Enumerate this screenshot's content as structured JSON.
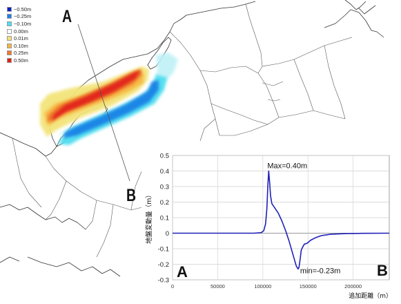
{
  "legend": {
    "items": [
      {
        "label": "−0.50m",
        "color": "#0a1ec8"
      },
      {
        "label": "−0.25m",
        "color": "#1e7ee6"
      },
      {
        "label": "−0.10m",
        "color": "#46e2ee"
      },
      {
        "label": "0.00m",
        "color": "#ffffff"
      },
      {
        "label": "0.01m",
        "color": "#f2e07a"
      },
      {
        "label": "0.10m",
        "color": "#f5b542"
      },
      {
        "label": "0.25m",
        "color": "#f07a2a"
      },
      {
        "label": "0.50m",
        "color": "#e21f14"
      }
    ]
  },
  "profile": {
    "start_label": "A",
    "end_label": "B"
  },
  "chart_data": {
    "type": "line",
    "title": "",
    "xlabel": "追加距離（m）",
    "ylabel": "地盤変動量（m）",
    "xlim": [
      0,
      240000
    ],
    "ylim": [
      -0.3,
      0.5
    ],
    "xticks": [
      0,
      50000,
      100000,
      150000,
      200000
    ],
    "yticks": [
      -0.3,
      -0.2,
      -0.1,
      0,
      0.1,
      0.2,
      0.3,
      0.4,
      0.5
    ],
    "ytick_labels": [
      "-0.3",
      "-0.2",
      "-0.1",
      "0",
      "0.1",
      "0.2",
      "0.3",
      "0.4",
      "0.5"
    ],
    "grid": true,
    "line_color": "#1f1fb8",
    "series": [
      {
        "x": [
          0,
          90000,
          98000,
          101000,
          103000,
          104500,
          105500,
          106500,
          107500,
          108500,
          110000,
          113000,
          117000,
          121000,
          125000,
          129000,
          132000,
          135000,
          137000,
          139000,
          140000,
          141500,
          142500,
          144000,
          146000,
          149000,
          153000,
          158000,
          165000,
          175000,
          190000,
          210000,
          240000
        ],
        "y": [
          0,
          0,
          0.003,
          0.015,
          0.06,
          0.16,
          0.3,
          0.4,
          0.33,
          0.24,
          0.19,
          0.165,
          0.13,
          0.08,
          0.02,
          -0.05,
          -0.11,
          -0.17,
          -0.21,
          -0.23,
          -0.22,
          -0.16,
          -0.11,
          -0.09,
          -0.07,
          -0.065,
          -0.045,
          -0.03,
          -0.015,
          -0.007,
          -0.003,
          -0.001,
          0
        ]
      }
    ],
    "annotations": [
      {
        "text": "Max=0.40m",
        "x": 106500,
        "y": 0.4
      },
      {
        "text": "min=-0.23m",
        "x": 139000,
        "y": -0.23
      }
    ],
    "corner_labels": [
      "A",
      "B"
    ]
  }
}
